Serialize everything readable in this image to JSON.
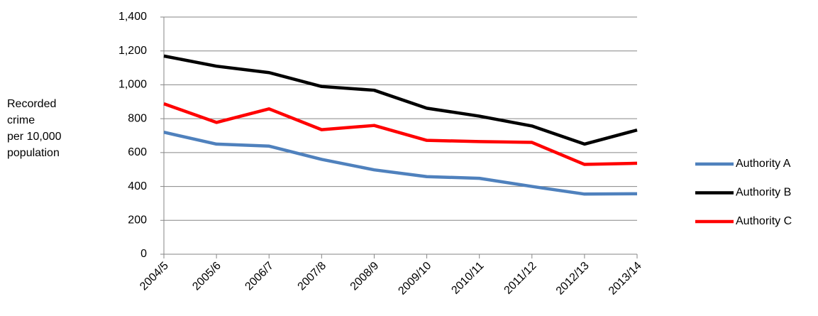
{
  "chart_data": {
    "type": "line",
    "y_label": [
      "Recorded",
      "crime",
      "per 10,000",
      "population"
    ],
    "categories": [
      "2004/5",
      "2005/6",
      "2006/7",
      "2007/8",
      "2008/9",
      "2009/10",
      "2010/11",
      "2011/12",
      "2012/13",
      "2013/14"
    ],
    "series": [
      {
        "name": "Authority A",
        "color": "#4f81bd",
        "values": [
          720,
          650,
          638,
          560,
          498,
          458,
          448,
          400,
          355,
          357
        ]
      },
      {
        "name": "Authority B",
        "color": "#000000",
        "values": [
          1170,
          1110,
          1072,
          990,
          968,
          862,
          815,
          757,
          650,
          733
        ]
      },
      {
        "name": "Authority C",
        "color": "#ff0000",
        "values": [
          888,
          778,
          858,
          735,
          760,
          672,
          665,
          660,
          530,
          537
        ]
      }
    ],
    "ylim": [
      0,
      1400
    ],
    "yticks": [
      0,
      200,
      400,
      600,
      800,
      {
        "value": 1000,
        "label": "1,000"
      },
      {
        "value": 1200,
        "label": "1,200"
      },
      {
        "value": 1400,
        "label": "1,400"
      }
    ],
    "grid": true,
    "legend": "right"
  }
}
